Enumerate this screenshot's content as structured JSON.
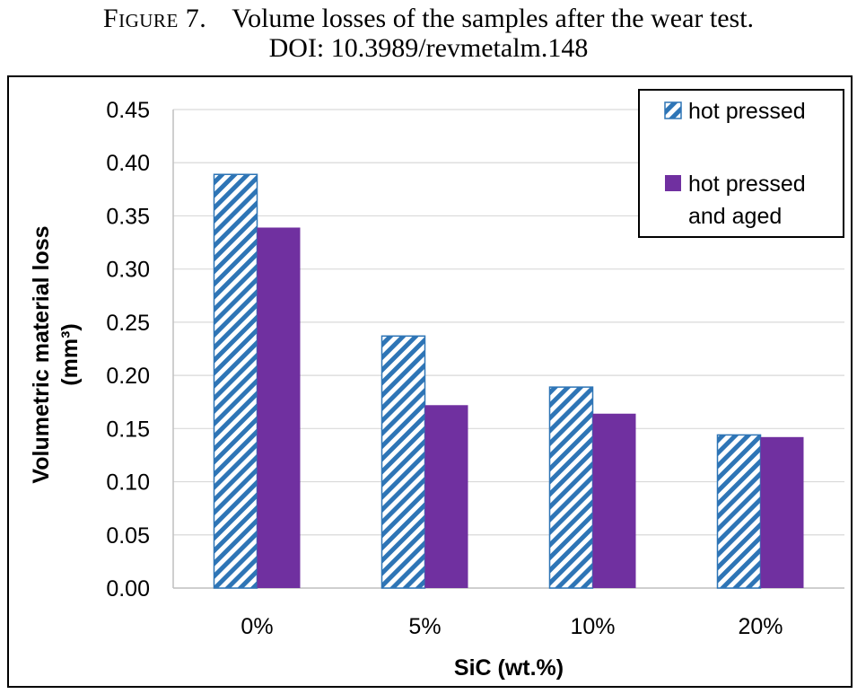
{
  "caption": {
    "figure_label": "Figure 7.",
    "text": "Volume losses of the samples after the wear test.",
    "doi": "DOI: 10.3989/revmetalm.148"
  },
  "chart_data": {
    "type": "bar",
    "categories": [
      "0%",
      "5%",
      "10%",
      "20%"
    ],
    "series": [
      {
        "name": "hot pressed",
        "values": [
          0.389,
          0.237,
          0.189,
          0.144
        ],
        "color": "#2e75b6",
        "pattern": "diagonal-hatch"
      },
      {
        "name": "hot pressed and aged",
        "values": [
          0.339,
          0.172,
          0.164,
          0.142
        ],
        "color": "#7030a0",
        "pattern": "solid"
      }
    ],
    "title": "",
    "xlabel": "SiC (wt.%)",
    "ylabel": "Volumetric material loss (mm³)",
    "ylim": [
      0,
      0.45
    ],
    "yticks": [
      "0.00",
      "0.05",
      "0.10",
      "0.15",
      "0.20",
      "0.25",
      "0.30",
      "0.35",
      "0.40",
      "0.45"
    ],
    "grid": true,
    "legend_position": "top-right"
  }
}
